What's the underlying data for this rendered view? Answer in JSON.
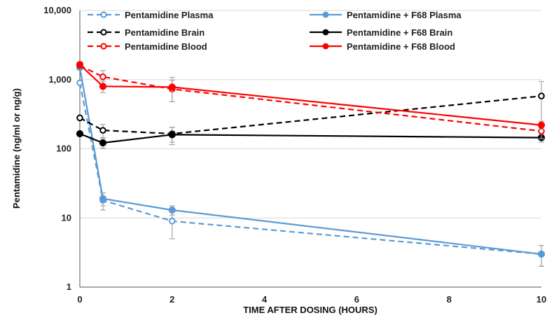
{
  "chart_data": {
    "type": "line",
    "xlabel": "TIME AFTER DOSING (HOURS)",
    "ylabel": "Pentamidine (ng/ml or ng/g)",
    "xlim": [
      0,
      10
    ],
    "ylim": [
      1,
      10000
    ],
    "yscale": "log",
    "xticks": [
      0,
      2,
      4,
      6,
      8,
      10
    ],
    "xtick_labels": [
      "0",
      "2",
      "4",
      "6",
      "8",
      "10"
    ],
    "yticks": [
      1,
      10,
      100,
      1000,
      10000
    ],
    "ytick_labels": [
      "1",
      "10",
      "100",
      "1,000",
      "10,000"
    ],
    "grid": "horizontal",
    "legend_position": "top",
    "series": [
      {
        "name": "Pentamidine Plasma",
        "color": "#5b9bd5",
        "dashed": true,
        "marker": "open",
        "x": [
          0,
          0.5,
          2,
          10
        ],
        "y": [
          900,
          18,
          9,
          3
        ],
        "err": [
          null,
          5,
          4,
          1
        ]
      },
      {
        "name": "Pentamidine + F68 Plasma",
        "color": "#5b9bd5",
        "dashed": false,
        "marker": "filled",
        "x": [
          0,
          0.5,
          2,
          10
        ],
        "y": [
          1500,
          19,
          13,
          3
        ],
        "err": [
          null,
          4,
          2,
          1
        ]
      },
      {
        "name": "Pentamidine Brain",
        "color": "#000000",
        "dashed": true,
        "marker": "open",
        "x": [
          0,
          0.5,
          2,
          10
        ],
        "y": [
          280,
          185,
          165,
          580
        ],
        "err": [
          null,
          40,
          40,
          360
        ]
      },
      {
        "name": "Pentamidine + F68 Brain",
        "color": "#000000",
        "dashed": false,
        "marker": "filled",
        "x": [
          0,
          0.5,
          2,
          10
        ],
        "y": [
          165,
          122,
          160,
          145
        ],
        "err": [
          null,
          20,
          45,
          20
        ]
      },
      {
        "name": "Pentamidine Blood",
        "color": "#ff0000",
        "dashed": true,
        "marker": "open",
        "x": [
          0,
          0.5,
          2,
          10
        ],
        "y": [
          1600,
          1100,
          730,
          180
        ],
        "err": [
          null,
          250,
          250,
          40
        ]
      },
      {
        "name": "Pentamidine + F68 Blood",
        "color": "#ff0000",
        "dashed": false,
        "marker": "filled",
        "x": [
          0,
          0.5,
          2,
          10
        ],
        "y": [
          1650,
          800,
          780,
          220
        ],
        "err": [
          null,
          150,
          300,
          30
        ]
      }
    ]
  }
}
